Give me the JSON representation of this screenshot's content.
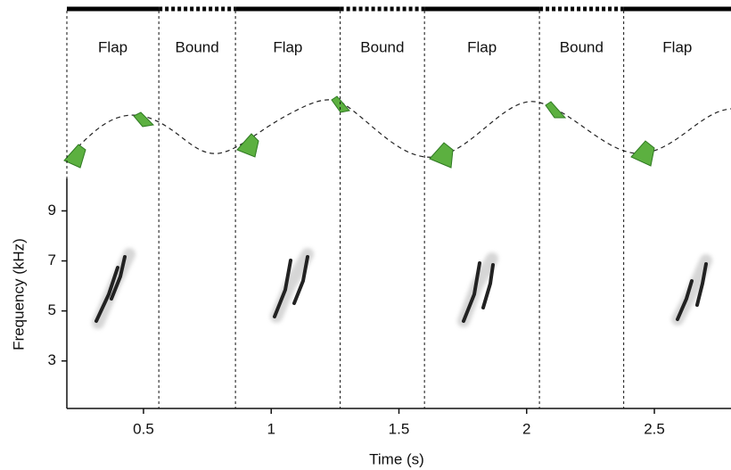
{
  "chart_data": {
    "type": "spectrogram",
    "xlabel": "Time (s)",
    "ylabel": "Frequency (kHz)",
    "xlim": [
      0.2,
      2.8
    ],
    "xticks": [
      0.5,
      1,
      1.5,
      2,
      2.5
    ],
    "ylim": [
      1.1,
      10.3
    ],
    "yticks": [
      3,
      5,
      7,
      9
    ],
    "phases": [
      {
        "label": "Flap",
        "start": 0.2,
        "end": 0.56
      },
      {
        "label": "Bound",
        "start": 0.56,
        "end": 0.86
      },
      {
        "label": "Flap",
        "start": 0.86,
        "end": 1.27
      },
      {
        "label": "Bound",
        "start": 1.27,
        "end": 1.6
      },
      {
        "label": "Flap",
        "start": 1.6,
        "end": 2.05
      },
      {
        "label": "Bound",
        "start": 2.05,
        "end": 2.38
      },
      {
        "label": "Flap",
        "start": 2.38,
        "end": 2.8
      }
    ]
  }
}
